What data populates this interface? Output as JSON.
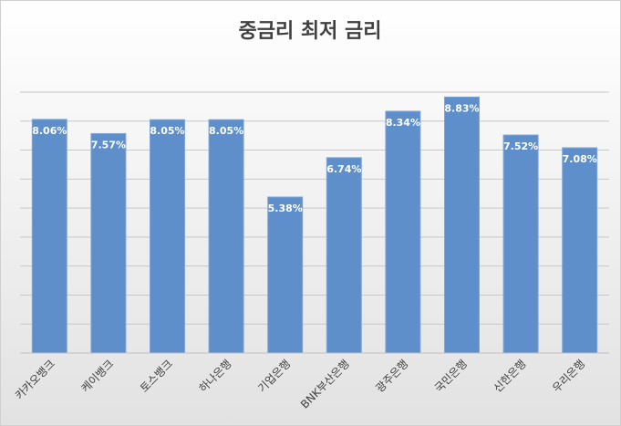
{
  "chart_data": {
    "type": "bar",
    "title": "중금리 최저 금리",
    "categories": [
      "카카오뱅크",
      "케이뱅크",
      "토스뱅크",
      "하나은행",
      "기업은행",
      "BNK부산은행",
      "광주은행",
      "국민은행",
      "신한은행",
      "우리은행"
    ],
    "values": [
      8.06,
      7.57,
      8.05,
      8.05,
      5.38,
      6.74,
      8.34,
      8.83,
      7.52,
      7.08
    ],
    "value_labels": [
      "8.06%",
      "7.57%",
      "8.05%",
      "8.05%",
      "5.38%",
      "6.74%",
      "8.34%",
      "8.83%",
      "7.52%",
      "7.08%"
    ],
    "color": "#5f8fcb",
    "ylim": [
      0,
      9
    ],
    "yticks": [
      0,
      1,
      2,
      3,
      4,
      5,
      6,
      7,
      8,
      9
    ],
    "grid": true
  }
}
